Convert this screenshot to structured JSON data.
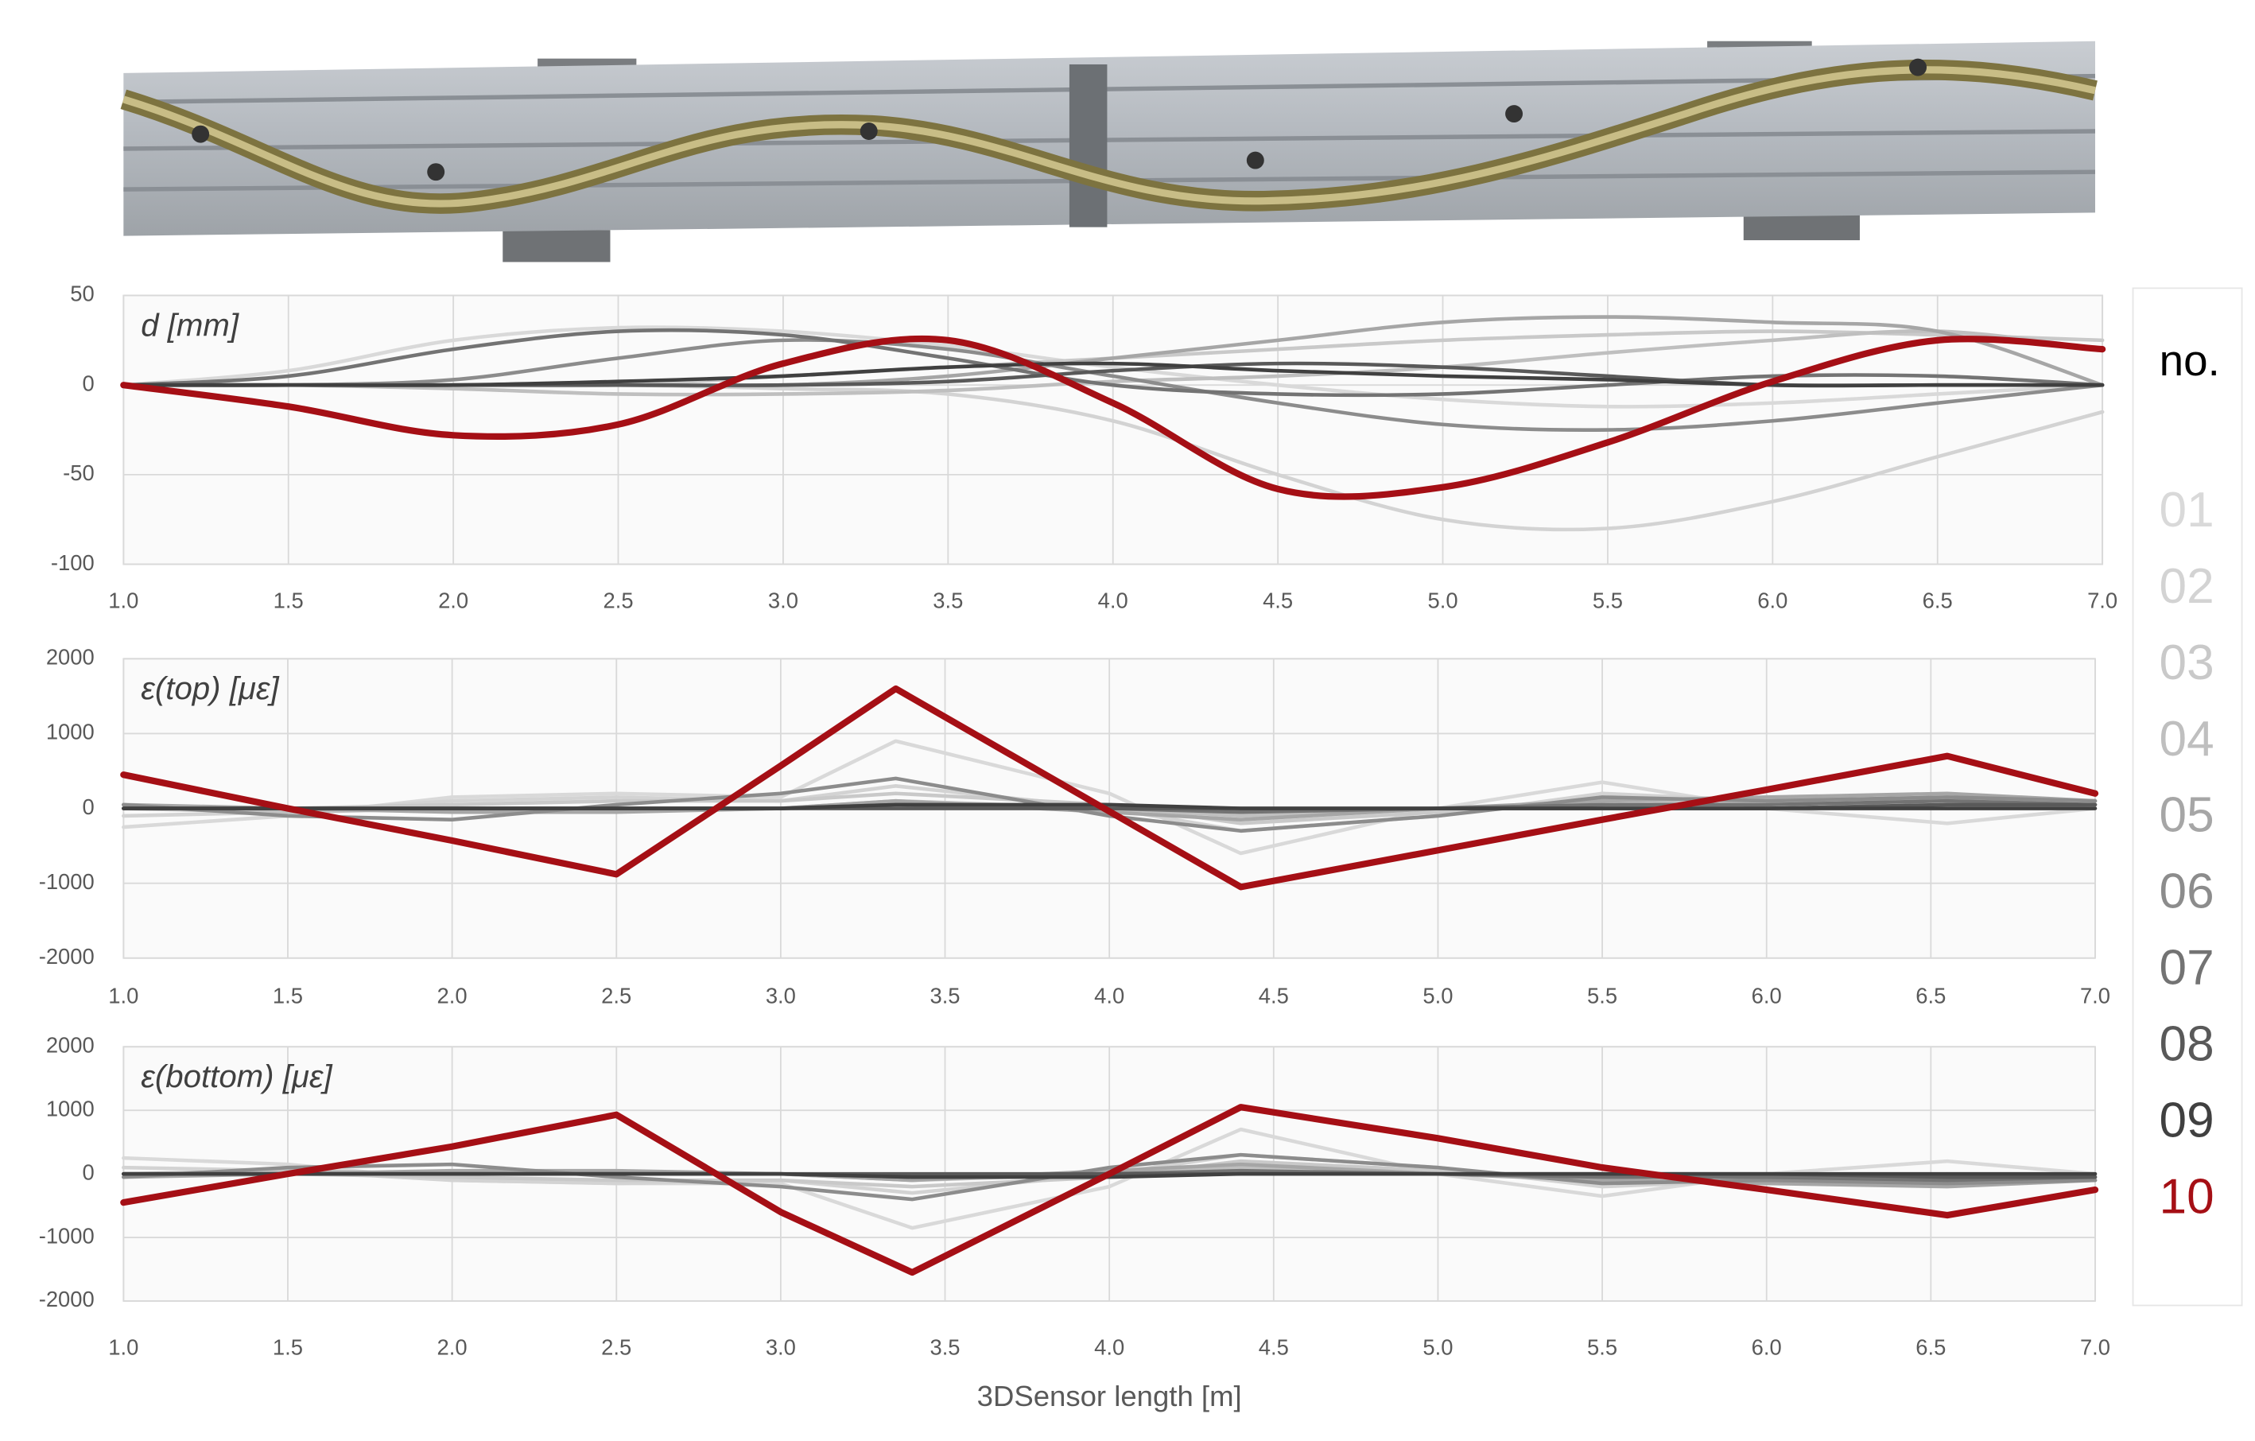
{
  "chart_data": [
    {
      "type": "line",
      "smooth": true,
      "title": "d [mm]",
      "legend_title": "no.",
      "x": [
        1.0,
        1.5,
        2.0,
        2.5,
        3.0,
        3.5,
        4.0,
        4.5,
        5.0,
        5.5,
        6.0,
        6.5,
        7.0
      ],
      "xlim": [
        1,
        7
      ],
      "xticks": [
        {
          "value": 1,
          "label": "1.0"
        },
        1.5,
        {
          "value": 2,
          "label": "2.0"
        },
        2.5,
        {
          "value": 3,
          "label": "3.0"
        },
        3.5,
        {
          "value": 4,
          "label": "4.0"
        },
        4.5,
        {
          "value": 5,
          "label": "5.0"
        },
        5.5,
        {
          "value": 6,
          "label": "6.0"
        },
        6.5,
        {
          "value": 7,
          "label": "7.0"
        }
      ],
      "ylim": [
        -100,
        50
      ],
      "yticks": [
        -100,
        -50,
        0,
        50
      ],
      "grid": true,
      "series": [
        {
          "name": "01",
          "color": "#d9d9d9",
          "values": [
            0,
            8,
            25,
            32,
            30,
            22,
            10,
            0,
            -8,
            -12,
            -10,
            -5,
            0
          ]
        },
        {
          "name": "02",
          "color": "#d3d3d3",
          "values": [
            0,
            0,
            0,
            0,
            -2,
            -5,
            -20,
            -50,
            -75,
            -80,
            -65,
            -40,
            -15
          ]
        },
        {
          "name": "03",
          "color": "#c9c9c9",
          "values": [
            0,
            0,
            0,
            0,
            5,
            10,
            15,
            20,
            25,
            28,
            30,
            28,
            25
          ]
        },
        {
          "name": "04",
          "color": "#bfbfbf",
          "values": [
            0,
            0,
            -2,
            -5,
            -5,
            -3,
            2,
            5,
            10,
            18,
            25,
            30,
            20
          ]
        },
        {
          "name": "05",
          "color": "#a6a6a6",
          "values": [
            0,
            0,
            0,
            0,
            0,
            5,
            15,
            25,
            35,
            38,
            35,
            30,
            0
          ]
        },
        {
          "name": "06",
          "color": "#8c8c8c",
          "values": [
            0,
            0,
            3,
            15,
            25,
            20,
            5,
            -10,
            -22,
            -25,
            -20,
            -10,
            0
          ]
        },
        {
          "name": "07",
          "color": "#737373",
          "values": [
            0,
            5,
            20,
            30,
            28,
            15,
            0,
            -5,
            -5,
            0,
            5,
            5,
            0
          ]
        },
        {
          "name": "08",
          "color": "#595959",
          "values": [
            0,
            0,
            0,
            0,
            0,
            2,
            8,
            12,
            10,
            5,
            0,
            0,
            0
          ]
        },
        {
          "name": "09",
          "color": "#404040",
          "values": [
            0,
            0,
            0,
            2,
            5,
            10,
            12,
            8,
            5,
            3,
            0,
            0,
            0
          ]
        },
        {
          "name": "10",
          "color": "#a50f15",
          "values": [
            0,
            -12,
            -28,
            -22,
            12,
            25,
            -10,
            -58,
            -57,
            -32,
            2,
            25,
            20
          ]
        }
      ]
    },
    {
      "type": "line",
      "title": "ε(top) [με]",
      "x": [
        1.0,
        1.5,
        2.0,
        2.5,
        3.0,
        3.35,
        4.0,
        4.4,
        5.0,
        5.5,
        6.0,
        6.55,
        7.0
      ],
      "xlim": [
        1,
        7
      ],
      "xticks": [
        {
          "value": 1,
          "label": "1.0"
        },
        1.5,
        {
          "value": 2,
          "label": "2.0"
        },
        2.5,
        {
          "value": 3,
          "label": "3.0"
        },
        3.5,
        {
          "value": 4,
          "label": "4.0"
        },
        4.5,
        {
          "value": 5,
          "label": "5.0"
        },
        5.5,
        {
          "value": 6,
          "label": "6.0"
        },
        6.5,
        {
          "value": 7,
          "label": "7.0"
        }
      ],
      "ylim": [
        -2000,
        2000
      ],
      "yticks": [
        -2000,
        -1000,
        0,
        1000,
        2000
      ],
      "grid": true,
      "series": [
        {
          "values": [
            -250,
            -100,
            150,
            200,
            150,
            900,
            200,
            -600,
            0,
            350,
            0,
            -200,
            0
          ]
        },
        {
          "values": [
            -100,
            -50,
            100,
            150,
            100,
            300,
            0,
            -300,
            -100,
            200,
            100,
            0,
            50
          ]
        },
        {
          "values": [
            0,
            0,
            50,
            100,
            100,
            200,
            50,
            -200,
            -50,
            100,
            150,
            100,
            100
          ]
        },
        {
          "values": [
            0,
            -50,
            0,
            0,
            0,
            100,
            0,
            -100,
            0,
            50,
            100,
            150,
            100
          ]
        },
        {
          "values": [
            50,
            0,
            -50,
            -50,
            0,
            100,
            -50,
            -150,
            0,
            100,
            150,
            200,
            100
          ]
        },
        {
          "values": [
            50,
            -100,
            -150,
            50,
            200,
            400,
            -100,
            -300,
            -100,
            150,
            100,
            150,
            100
          ]
        },
        {
          "values": [
            0,
            0,
            0,
            0,
            0,
            50,
            0,
            -50,
            0,
            50,
            50,
            100,
            50
          ]
        },
        {
          "values": [
            0,
            0,
            0,
            0,
            0,
            0,
            0,
            0,
            0,
            0,
            0,
            50,
            50
          ]
        },
        {
          "values": [
            0,
            0,
            0,
            0,
            0,
            50,
            50,
            0,
            0,
            0,
            0,
            0,
            0
          ]
        },
        {
          "values": [
            450,
            0,
            -430,
            -880,
            570,
            1600,
            -40,
            -1050,
            -560,
            -150,
            250,
            700,
            200
          ]
        }
      ]
    },
    {
      "type": "line",
      "title": "ε(bottom) [με]",
      "x_label": "3DSensor length [m]",
      "x": [
        1.0,
        1.5,
        2.0,
        2.5,
        3.0,
        3.4,
        4.0,
        4.4,
        5.0,
        5.5,
        6.0,
        6.55,
        7.0
      ],
      "xlim": [
        1,
        7
      ],
      "xticks": [
        {
          "value": 1,
          "label": "1.0"
        },
        1.5,
        {
          "value": 2,
          "label": "2.0"
        },
        2.5,
        {
          "value": 3,
          "label": "3.0"
        },
        3.5,
        {
          "value": 4,
          "label": "4.0"
        },
        4.5,
        {
          "value": 5,
          "label": "5.0"
        },
        5.5,
        {
          "value": 6,
          "label": "6.0"
        },
        6.5,
        {
          "value": 7,
          "label": "7.0"
        }
      ],
      "ylim": [
        -2000,
        2000
      ],
      "yticks": [
        -2000,
        -1000,
        0,
        1000,
        2000
      ],
      "grid": true,
      "series": [
        {
          "values": [
            250,
            150,
            -100,
            -150,
            -150,
            -850,
            -200,
            700,
            0,
            -350,
            0,
            200,
            0
          ]
        },
        {
          "values": [
            100,
            50,
            -100,
            -150,
            -100,
            -300,
            0,
            300,
            100,
            -200,
            -100,
            0,
            -50
          ]
        },
        {
          "values": [
            0,
            0,
            -50,
            -100,
            -100,
            -200,
            -50,
            200,
            50,
            -100,
            -150,
            -100,
            -100
          ]
        },
        {
          "values": [
            0,
            50,
            0,
            0,
            0,
            -100,
            0,
            100,
            0,
            -50,
            -100,
            -150,
            -100
          ]
        },
        {
          "values": [
            -50,
            0,
            50,
            50,
            0,
            -100,
            50,
            150,
            0,
            -100,
            -150,
            -200,
            -100
          ]
        },
        {
          "values": [
            -50,
            100,
            150,
            -50,
            -200,
            -400,
            100,
            300,
            100,
            -150,
            -100,
            -150,
            -100
          ]
        },
        {
          "values": [
            0,
            0,
            0,
            0,
            0,
            -50,
            0,
            50,
            0,
            -50,
            -50,
            -100,
            -50
          ]
        },
        {
          "values": [
            0,
            0,
            0,
            0,
            0,
            0,
            0,
            0,
            0,
            0,
            0,
            -50,
            -50
          ]
        },
        {
          "values": [
            0,
            0,
            0,
            0,
            0,
            -50,
            -50,
            0,
            0,
            0,
            0,
            0,
            0
          ]
        },
        {
          "values": [
            -450,
            0,
            430,
            930,
            -600,
            -1550,
            0,
            1050,
            560,
            100,
            -250,
            -650,
            -250
          ]
        }
      ]
    }
  ]
}
